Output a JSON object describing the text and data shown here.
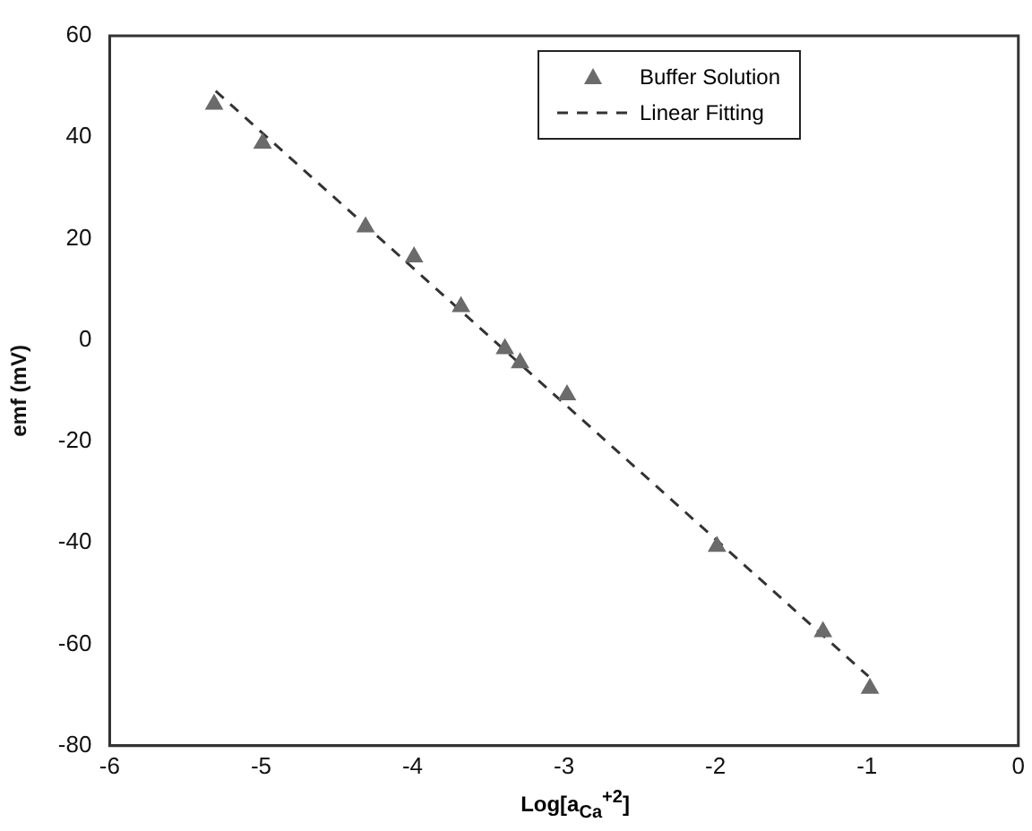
{
  "chart_data": {
    "type": "scatter",
    "xlabel": "Log[a$_{Ca}$$^{+2}$]",
    "ylabel": "emf (mV)",
    "xlim": [
      -6,
      0
    ],
    "xticks": [
      -6,
      -5,
      -4,
      -3,
      -2,
      -1,
      0
    ],
    "ylim": [
      -80,
      60
    ],
    "yticks": [
      -80,
      -60,
      -40,
      -20,
      0,
      20,
      40,
      60
    ],
    "legend": "top right",
    "grid": false,
    "series": [
      {
        "name": "Buffer Solution",
        "marker": "triangle",
        "color": "#6b6b6b",
        "x": [
          -5.31,
          -4.99,
          -4.31,
          -3.99,
          -3.68,
          -3.39,
          -3.29,
          -2.98,
          -1.99,
          -1.29,
          -0.98
        ],
        "values": [
          46.5,
          38.8,
          22.3,
          16.4,
          6.6,
          -1.7,
          -4.5,
          -10.8,
          -40.7,
          -57.5,
          -68.7
        ]
      },
      {
        "name": "Linear Fitting",
        "type": "line",
        "line_style": "dashed",
        "marker": "none",
        "color": "#333333",
        "x": [
          -5.3,
          -0.99
        ],
        "values": [
          49.1,
          -66.3
        ]
      }
    ]
  }
}
